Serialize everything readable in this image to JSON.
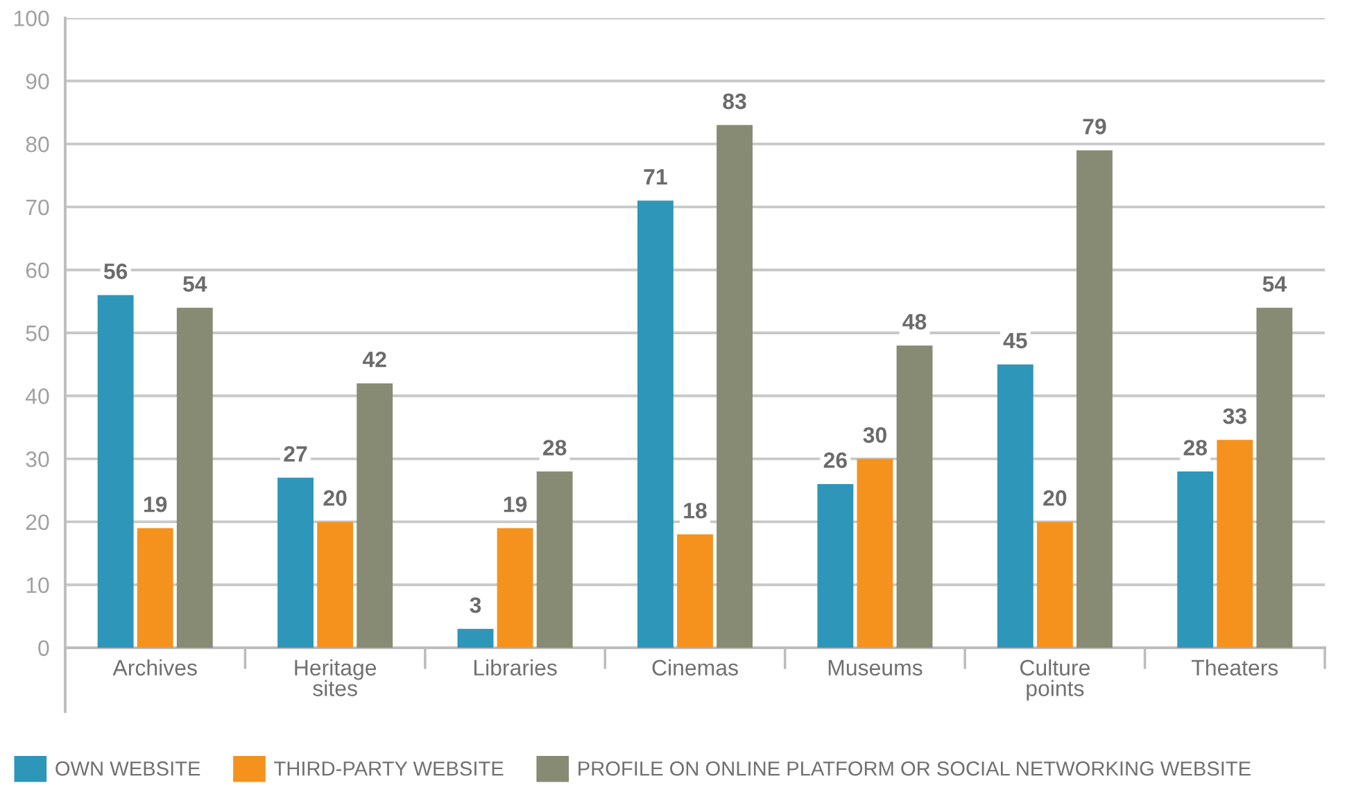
{
  "chart_data": {
    "type": "bar",
    "categories": [
      "Archives",
      "Heritage\nsites",
      "Libraries",
      "Cinemas",
      "Museums",
      "Culture\npoints",
      "Theaters"
    ],
    "series": [
      {
        "name": "OWN WEBSITE",
        "color": "#2e96b9",
        "values": [
          56,
          27,
          3,
          71,
          26,
          45,
          28
        ]
      },
      {
        "name": "THIRD-PARTY WEBSITE",
        "color": "#f5921e",
        "values": [
          19,
          20,
          19,
          18,
          30,
          20,
          33
        ]
      },
      {
        "name": "PROFILE ON ONLINE PLATFORM OR SOCIAL NETWORKING WEBSITE",
        "color": "#878b74",
        "values": [
          54,
          42,
          28,
          83,
          48,
          79,
          54
        ]
      }
    ],
    "ylim": [
      0,
      100
    ],
    "yticks": [
      0,
      10,
      20,
      30,
      40,
      50,
      60,
      70,
      80,
      90,
      100
    ],
    "grid": "y",
    "legend": "bottom",
    "data_labels": true
  }
}
